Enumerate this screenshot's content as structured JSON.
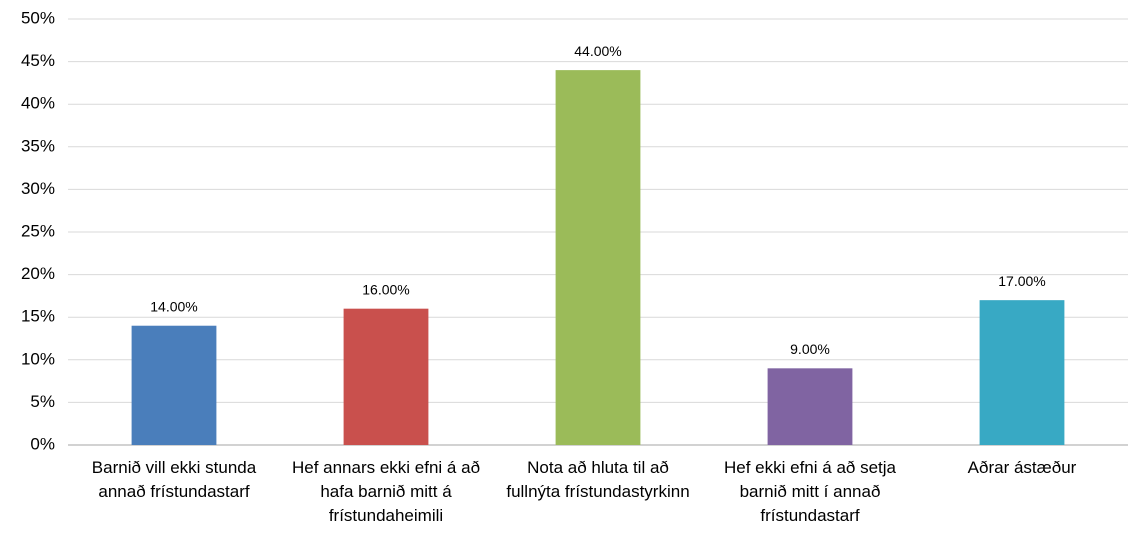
{
  "chart_data": {
    "type": "bar",
    "categories": [
      "Barnið vill ekki stunda annað frístundastarf",
      "Hef annars ekki efni á að hafa barnið mitt á frístundaheimili",
      "Nota að hluta til að fullnýta frístundastyrkinn",
      "Hef ekki efni á að setja barnið mitt í annað frístundastarf",
      "Aðrar ástæður"
    ],
    "values": [
      14,
      16,
      44,
      9,
      17
    ],
    "value_labels": [
      "14.00%",
      "16.00%",
      "44.00%",
      "9.00%",
      "17.00%"
    ],
    "colors": [
      "#4a7ebb",
      "#c9504d",
      "#9bbb59",
      "#8064a2",
      "#38a9c4"
    ],
    "ylim": [
      0,
      50
    ],
    "yticks": [
      {
        "value": 0,
        "label": "0%"
      },
      {
        "value": 5,
        "label": "5%"
      },
      {
        "value": 10,
        "label": "10%"
      },
      {
        "value": 15,
        "label": "15%"
      },
      {
        "value": 20,
        "label": "20%"
      },
      {
        "value": 25,
        "label": "25%"
      },
      {
        "value": 30,
        "label": "30%"
      },
      {
        "value": 35,
        "label": "35%"
      },
      {
        "value": 40,
        "label": "40%"
      },
      {
        "value": 45,
        "label": "45%"
      },
      {
        "value": 50,
        "label": "50%"
      }
    ],
    "grid": true
  }
}
